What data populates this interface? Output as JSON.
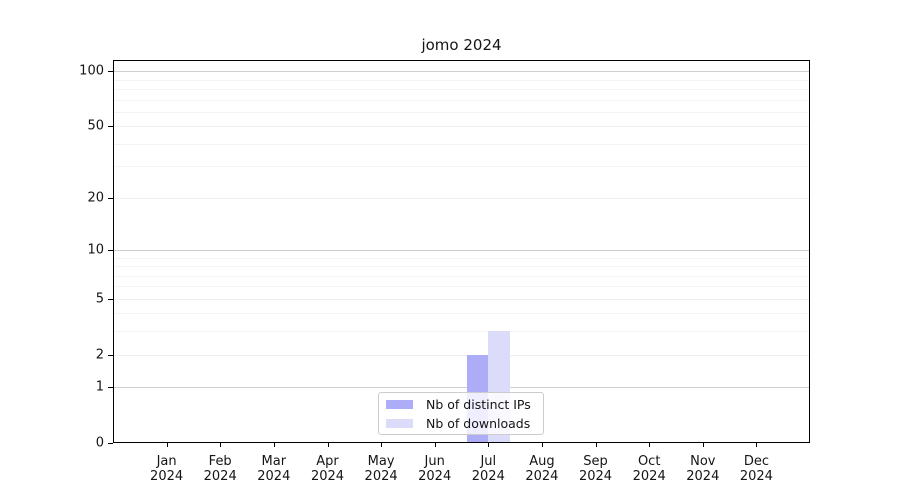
{
  "chart_data": {
    "type": "bar",
    "title": "jomo 2024",
    "x_tick_labels": [
      "Jan",
      "Feb",
      "Mar",
      "Apr",
      "May",
      "Jun",
      "Jul",
      "Aug",
      "Sep",
      "Oct",
      "Nov",
      "Dec"
    ],
    "x_tick_year": "2024",
    "y_tick_labels": [
      0,
      1,
      2,
      5,
      10,
      20,
      50,
      100
    ],
    "y_minor_gridlines": [
      3,
      4,
      6,
      7,
      8,
      9,
      30,
      40,
      60,
      70,
      80,
      90
    ],
    "y_decade_gridlines": [
      1,
      10,
      100
    ],
    "y_scale": "log1p",
    "ylim": [
      0,
      115
    ],
    "grid": true,
    "legend_position": "lower center",
    "series": [
      {
        "name": "Nb of distinct IPs",
        "color": "#acacf7",
        "values": [
          0,
          0,
          0,
          0,
          0,
          0,
          2,
          0,
          0,
          0,
          0,
          0
        ]
      },
      {
        "name": "Nb of downloads",
        "color": "#dbdbfa",
        "values": [
          0,
          0,
          0,
          0,
          0,
          0,
          3,
          0,
          0,
          0,
          0,
          0
        ]
      }
    ],
    "colors": {
      "spine": "#000000",
      "gridline_decade": "#cfcfcf",
      "gridline_major": "#eeeeee",
      "gridline_minor": "#f3f3f3",
      "text": "#151515"
    }
  }
}
